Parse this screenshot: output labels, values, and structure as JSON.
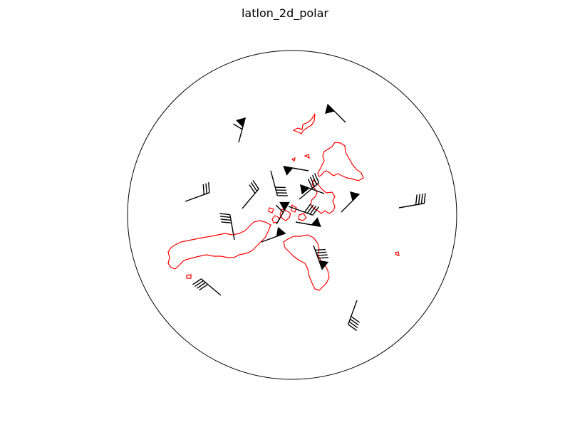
{
  "chart_data": {
    "type": "wind-barbs-map",
    "title": "latlon_2d_polar",
    "projection": "polar",
    "coastline_color": "#ff0000",
    "barb_color": "#000000",
    "grid": false,
    "xlabel": "",
    "ylabel": ""
  }
}
